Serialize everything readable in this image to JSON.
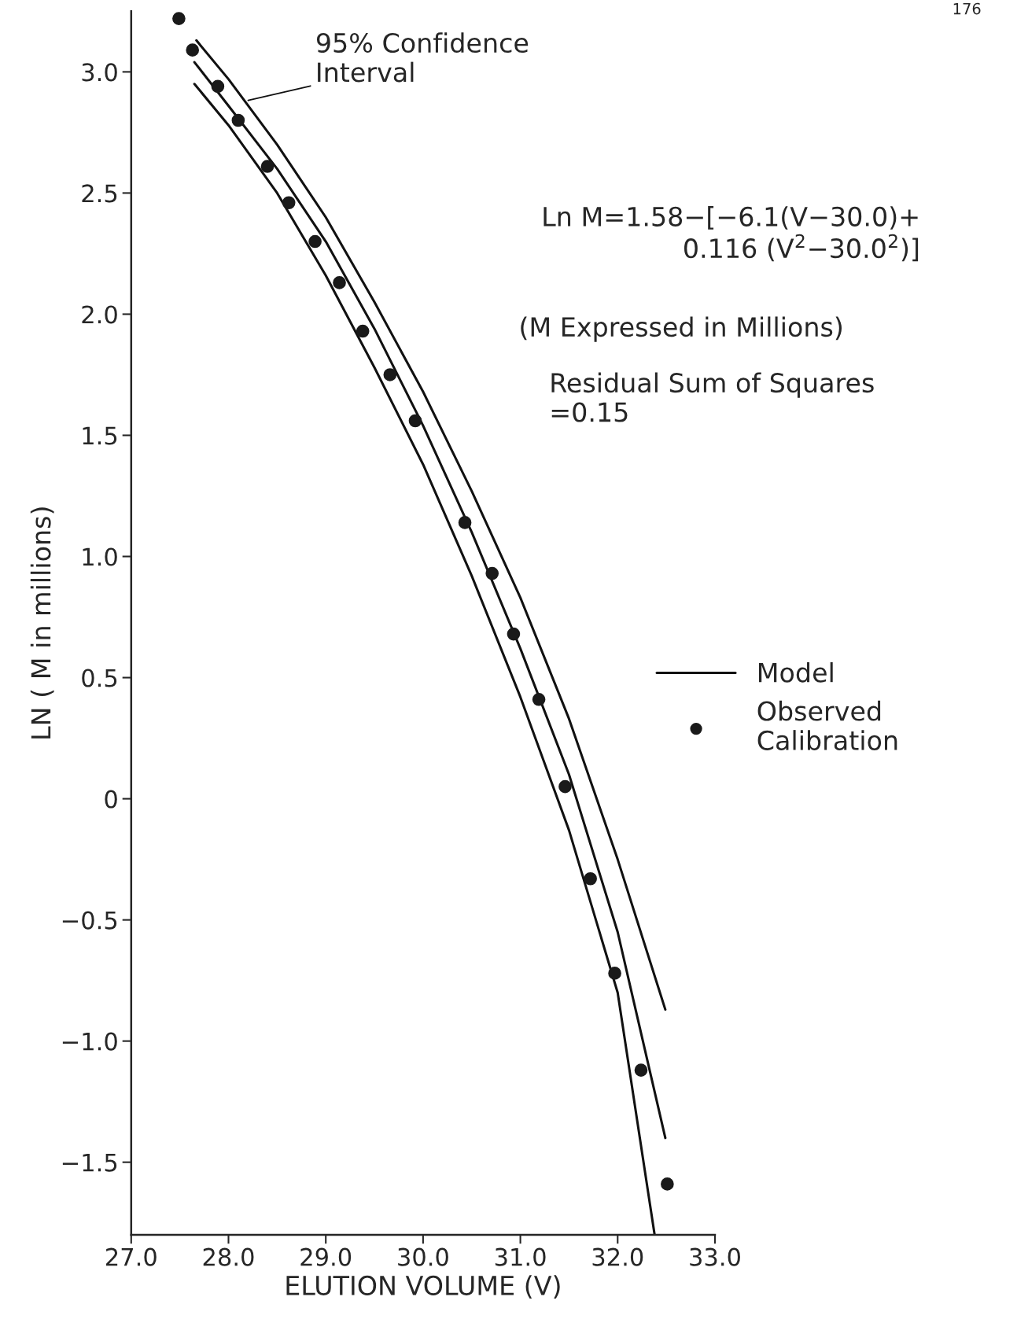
{
  "chart_data": {
    "type": "line",
    "xlabel": "ELUTION VOLUME (V)",
    "ylabel": "LN ( M in millions)",
    "xlim": [
      27.0,
      33.0
    ],
    "ylim": [
      -1.8,
      3.25
    ],
    "xticks": [
      {
        "value": 27,
        "label": "27.0"
      },
      {
        "value": 28,
        "label": "28.0"
      },
      {
        "value": 29,
        "label": "29.0"
      },
      {
        "value": 30,
        "label": "30.0"
      },
      {
        "value": 31,
        "label": "31.0"
      },
      {
        "value": 32,
        "label": "32.0"
      },
      {
        "value": 33,
        "label": "33.0"
      }
    ],
    "yticks": [
      {
        "value": -1.5,
        "label": "−1.5"
      },
      {
        "value": -1.0,
        "label": "−1.0"
      },
      {
        "value": -0.5,
        "label": "−0.5"
      },
      0,
      0.5,
      {
        "value": 1,
        "label": "1.0"
      },
      1.5,
      {
        "value": 2,
        "label": "2.0"
      },
      2.5,
      {
        "value": 3,
        "label": "3.0"
      }
    ],
    "grid": false,
    "legend": "right",
    "series": [
      {
        "name": "Model",
        "color": "#111111",
        "line_style": "solid",
        "marker": "none",
        "x": [
          27.65,
          28.0,
          28.5,
          29.0,
          29.5,
          30.0,
          30.5,
          31.0,
          31.5,
          32.0,
          32.49
        ],
        "values": [
          3.04,
          2.86,
          2.6,
          2.3,
          1.94,
          1.54,
          1.1,
          0.62,
          0.1,
          -0.55,
          -1.4
        ]
      },
      {
        "color": "#111111",
        "line_style": "solid",
        "marker": "none",
        "x": [
          27.67,
          28.0,
          28.5,
          29.0,
          29.5,
          30.0,
          30.5,
          31.0,
          31.5,
          32.0,
          32.49
        ],
        "values": [
          3.13,
          2.97,
          2.7,
          2.4,
          2.05,
          1.68,
          1.27,
          0.83,
          0.33,
          -0.25,
          -0.87
        ]
      },
      {
        "color": "#111111",
        "line_style": "solid",
        "marker": "none",
        "x": [
          27.65,
          28.0,
          28.5,
          29.0,
          29.5,
          30.0,
          30.5,
          31.0,
          31.5,
          32.0,
          32.38
        ],
        "values": [
          2.95,
          2.78,
          2.5,
          2.16,
          1.78,
          1.38,
          0.92,
          0.42,
          -0.13,
          -0.8,
          -1.8
        ]
      },
      {
        "name": "Observed\nCalibration",
        "type": "scatter",
        "color": "#1a1a1a",
        "marker": "circle",
        "x": [
          27.49,
          27.63,
          27.89,
          28.1,
          28.4,
          28.62,
          28.89,
          29.14,
          29.38,
          29.66,
          29.92,
          30.43,
          30.71,
          30.93,
          31.19,
          31.46,
          31.72,
          31.97,
          32.24,
          32.51
        ],
        "values": [
          3.22,
          3.09,
          2.94,
          2.8,
          2.61,
          2.46,
          2.3,
          2.13,
          1.93,
          1.75,
          1.56,
          1.14,
          0.93,
          0.68,
          0.41,
          0.05,
          -0.33,
          -0.72,
          -1.12,
          -1.59
        ]
      }
    ],
    "annotations": [
      {
        "text": "95% Confidence\nInterval",
        "x": 28.18,
        "y": 2.88
      },
      "Ln M=1.58−[−6.1(V−30.0)+\n0.116 (V$^{2}$−30.0$^{2}$)]",
      "(M Expressed in Millions)",
      "Residual Sum of Squares\n=0.15",
      "176"
    ]
  }
}
